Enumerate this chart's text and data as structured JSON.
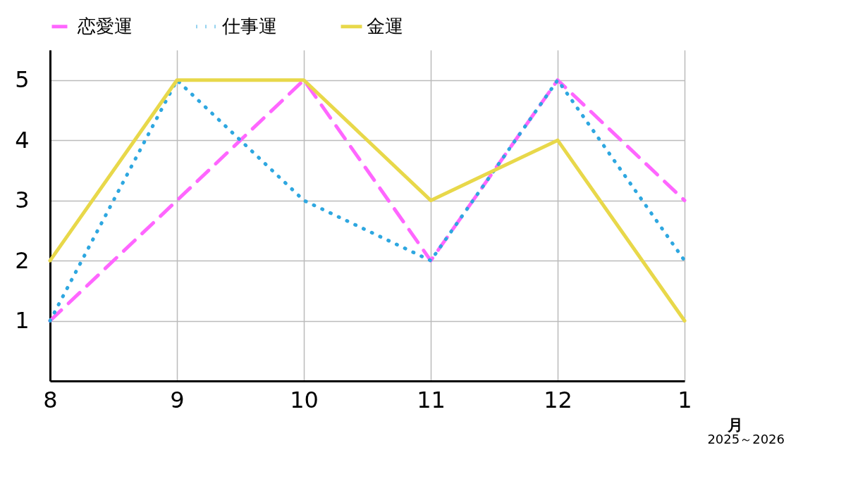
{
  "chart_data": {
    "type": "line",
    "categories": [
      "8",
      "9",
      "10",
      "11",
      "12",
      "1"
    ],
    "xlabel": "月",
    "annotations": [
      "2025～2026"
    ],
    "series": [
      {
        "name": "恋愛運",
        "color": "#ff66ff",
        "line_style": "dashed",
        "values": [
          1,
          3,
          5,
          2,
          5,
          3
        ]
      },
      {
        "name": "仕事運",
        "color": "#2ea7e0",
        "line_style": "dotted",
        "values": [
          1,
          5,
          3,
          2,
          5,
          2
        ]
      },
      {
        "name": "金運",
        "color": "#e8d84a",
        "line_style": "solid",
        "values": [
          2,
          5,
          5,
          3,
          4,
          1
        ]
      }
    ],
    "ylim": [
      0,
      5.5
    ],
    "yticks": [
      1,
      2,
      3,
      4,
      5
    ],
    "grid": true,
    "legend": "top",
    "marker": "none"
  }
}
